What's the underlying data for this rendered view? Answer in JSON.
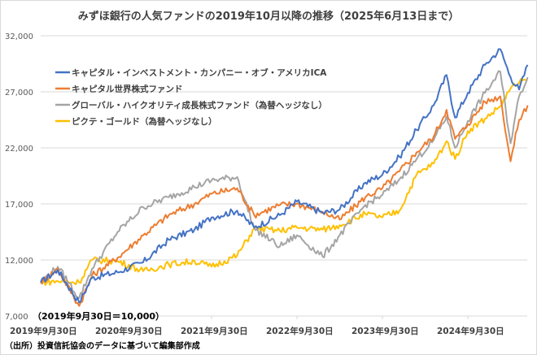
{
  "chart_data": {
    "type": "line",
    "title": "みずほ銀行の人気ファンドの2019年10月以降の推移（2025年6月13日まで）",
    "xlabel": "",
    "ylabel": "",
    "base_note": "（2019年9月30日＝10,000）",
    "source": "（出所）投資信託協会のデータに基づいて編集部作成",
    "ylim": [
      7000,
      32000
    ],
    "y_ticks": [
      7000,
      12000,
      17000,
      22000,
      27000,
      32000
    ],
    "y_tick_labels": [
      "7,000",
      "12,000",
      "17,000",
      "22,000",
      "27,000",
      "32,000"
    ],
    "x_unit": "years since 2019-09-30",
    "xlim": [
      0,
      5.7
    ],
    "x_ticks": [
      0,
      1,
      2,
      3,
      4,
      5
    ],
    "x_tick_labels": [
      "2019年9月30日",
      "2020年9月30日",
      "2021年9月30日",
      "2022年9月30日",
      "2023年9月30日",
      "2024年9月30日"
    ],
    "grid": true,
    "legend_position": "top-left",
    "x": [
      0,
      0.2,
      0.45,
      0.6,
      0.9,
      1.2,
      1.5,
      1.8,
      2.0,
      2.3,
      2.5,
      2.8,
      3.0,
      3.3,
      3.5,
      3.8,
      4.0,
      4.2,
      4.4,
      4.6,
      4.75,
      4.85,
      5.0,
      5.2,
      5.38,
      5.5,
      5.6,
      5.7
    ],
    "series": [
      {
        "name": "キャピタル・インベストメント・カンパニー・オブ・アメリカICA",
        "color": "#4472c4",
        "values": [
          10000,
          11100,
          8200,
          10400,
          10900,
          11800,
          13800,
          14700,
          15800,
          16400,
          14900,
          16000,
          17200,
          16200,
          16500,
          18900,
          19600,
          21200,
          23600,
          25800,
          28500,
          24700,
          26900,
          29400,
          30800,
          28300,
          27200,
          29400
        ]
      },
      {
        "name": "キャピタル世界株式ファンド",
        "color": "#ed7d31",
        "values": [
          10000,
          11200,
          7900,
          10600,
          12200,
          14200,
          16000,
          17000,
          17900,
          18400,
          16000,
          16900,
          17000,
          16300,
          15600,
          17600,
          18400,
          19900,
          21600,
          23000,
          25400,
          22800,
          24100,
          26100,
          26600,
          20800,
          24500,
          25800
        ]
      },
      {
        "name": "グローバル・ハイクオリティ成長株式ファンド（為替ヘッジなし）",
        "color": "#a5a5a5",
        "values": [
          10000,
          11400,
          8600,
          11200,
          14500,
          16700,
          17600,
          18500,
          19100,
          19400,
          14800,
          13200,
          14200,
          12300,
          14200,
          16900,
          17800,
          19200,
          21000,
          22700,
          24800,
          22000,
          24400,
          26900,
          28800,
          22400,
          26600,
          28300
        ]
      },
      {
        "name": "ピクテ・ゴールド（為替ヘッジなし）",
        "color": "#ffc000",
        "values": [
          10000,
          10100,
          10000,
          12000,
          11900,
          11000,
          11600,
          11900,
          11400,
          12400,
          14800,
          14600,
          14900,
          14700,
          15100,
          16100,
          15800,
          16400,
          19600,
          20600,
          22600,
          21000,
          23500,
          24600,
          25700,
          27300,
          27800,
          28100
        ]
      }
    ]
  }
}
